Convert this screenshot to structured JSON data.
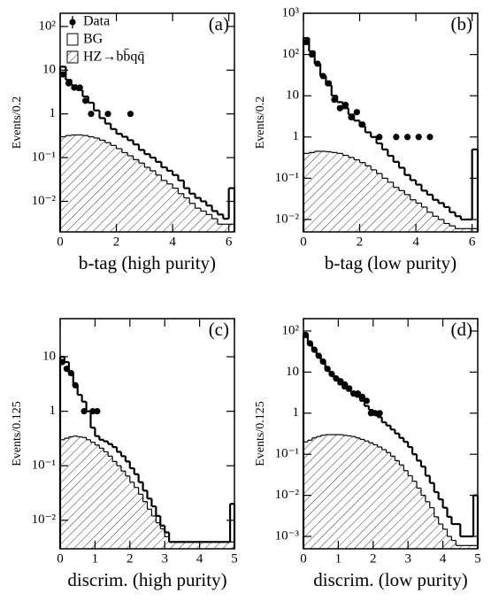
{
  "chart_data": [
    {
      "type": "histogram",
      "panel_label": "(a)",
      "xlabel": "b-tag (high purity)",
      "ylabel": "Events/0.2",
      "log_y": true,
      "legend": "upper left",
      "xlim": [
        0,
        6.2
      ],
      "xticks": [
        0,
        2,
        4,
        6
      ],
      "ylim": [
        0.002,
        200
      ],
      "yticks": [
        {
          "value": 100,
          "label": "10²"
        },
        10,
        1,
        {
          "value": 0.1,
          "label": "10⁻¹"
        },
        {
          "value": 0.01,
          "label": "10⁻²"
        }
      ],
      "bins": [
        0,
        0.2,
        0.4,
        0.6,
        0.8,
        1.0,
        1.2,
        1.4,
        1.6,
        1.8,
        2.0,
        2.2,
        2.4,
        2.6,
        2.8,
        3.0,
        3.2,
        3.4,
        3.6,
        3.8,
        4.0,
        4.2,
        4.4,
        4.6,
        4.8,
        5.0,
        5.2,
        5.4,
        5.6,
        5.8,
        6.0,
        6.2
      ],
      "series": [
        {
          "name": "BG",
          "values": [
            12,
            6,
            4.5,
            3.5,
            2.5,
            1.8,
            1.2,
            0.8,
            0.6,
            0.45,
            0.35,
            0.3,
            0.25,
            0.2,
            0.15,
            0.12,
            0.1,
            0.08,
            0.06,
            0.05,
            0.04,
            0.03,
            0.02,
            0.015,
            0.012,
            0.01,
            0.008,
            0.006,
            0.005,
            0.004,
            0.02
          ]
        },
        {
          "name": "HZ→bb̄qq̄",
          "hatch": true,
          "values": [
            0.3,
            0.32,
            0.33,
            0.33,
            0.32,
            0.3,
            0.28,
            0.25,
            0.22,
            0.19,
            0.16,
            0.13,
            0.11,
            0.09,
            0.075,
            0.06,
            0.05,
            0.04,
            0.03,
            0.025,
            0.02,
            0.015,
            0.012,
            0.009,
            0.007,
            0.006,
            0.005,
            0.004,
            0.003,
            0.003,
            0.003
          ]
        }
      ],
      "points": {
        "name": "Data",
        "x": [
          0.1,
          0.3,
          0.5,
          0.7,
          0.9,
          1.1,
          1.7,
          2.5
        ],
        "values": [
          8,
          5,
          4,
          4,
          2,
          1,
          1,
          1
        ]
      }
    },
    {
      "type": "histogram",
      "panel_label": "(b)",
      "xlabel": "b-tag (low purity)",
      "ylabel": "Events/0.2",
      "log_y": true,
      "xlim": [
        0,
        6.2
      ],
      "xticks": [
        0,
        2,
        4,
        6
      ],
      "ylim": [
        0.005,
        1000
      ],
      "yticks": [
        {
          "value": 1000,
          "label": "10³"
        },
        {
          "value": 100,
          "label": "10²"
        },
        10,
        1,
        {
          "value": 0.1,
          "label": "10⁻¹"
        },
        {
          "value": 0.01,
          "label": "10⁻²"
        }
      ],
      "bins": [
        0,
        0.2,
        0.4,
        0.6,
        0.8,
        1.0,
        1.2,
        1.4,
        1.6,
        1.8,
        2.0,
        2.2,
        2.4,
        2.6,
        2.8,
        3.0,
        3.2,
        3.4,
        3.6,
        3.8,
        4.0,
        4.2,
        4.4,
        4.6,
        4.8,
        5.0,
        5.2,
        5.4,
        5.6,
        5.8,
        6.0,
        6.2
      ],
      "series": [
        {
          "values": [
            250,
            120,
            60,
            30,
            18,
            10,
            7,
            5,
            3.5,
            2.5,
            1.8,
            1.3,
            1,
            0.7,
            0.5,
            0.35,
            0.25,
            0.18,
            0.12,
            0.09,
            0.07,
            0.05,
            0.04,
            0.03,
            0.025,
            0.02,
            0.015,
            0.012,
            0.01,
            0.01,
            0.5
          ]
        },
        {
          "hatch": true,
          "values": [
            0.4,
            0.42,
            0.45,
            0.45,
            0.44,
            0.42,
            0.4,
            0.36,
            0.32,
            0.28,
            0.24,
            0.2,
            0.16,
            0.13,
            0.1,
            0.08,
            0.06,
            0.05,
            0.04,
            0.03,
            0.025,
            0.02,
            0.015,
            0.012,
            0.01,
            0.008,
            0.007,
            0.006,
            0.006,
            0.006,
            0.006
          ]
        }
      ],
      "points": {
        "x": [
          0.1,
          0.3,
          0.5,
          0.7,
          0.9,
          1.1,
          1.3,
          1.5,
          1.7,
          1.9,
          2.1,
          2.7,
          3.3,
          3.7,
          4.1,
          4.5
        ],
        "values": [
          200,
          100,
          60,
          30,
          20,
          8,
          5,
          6,
          3,
          4,
          2,
          1,
          1,
          1,
          1,
          1
        ]
      }
    },
    {
      "type": "histogram",
      "panel_label": "(c)",
      "xlabel": "discrim. (high purity)",
      "ylabel": "Events/0.125",
      "log_y": true,
      "xlim": [
        0,
        5
      ],
      "xticks": [
        0,
        1,
        2,
        3,
        4,
        5
      ],
      "ylim": [
        0.003,
        50
      ],
      "yticks": [
        10,
        1,
        {
          "value": 0.1,
          "label": "10⁻¹"
        },
        {
          "value": 0.01,
          "label": "10⁻²"
        }
      ],
      "bins": [
        0,
        0.125,
        0.25,
        0.375,
        0.5,
        0.625,
        0.75,
        0.875,
        1.0,
        1.125,
        1.25,
        1.375,
        1.5,
        1.625,
        1.75,
        1.875,
        2.0,
        2.125,
        2.25,
        2.375,
        2.5,
        2.625,
        2.75,
        2.875,
        3.0,
        3.125,
        3.25,
        3.375,
        3.5,
        3.625,
        3.75,
        3.875,
        4.0,
        4.125,
        4.25,
        4.375,
        4.5,
        4.625,
        4.75,
        4.875,
        5.0
      ],
      "series": [
        {
          "values": [
            10,
            8,
            5,
            3,
            2,
            1.5,
            1,
            0.5,
            0.35,
            0.3,
            0.28,
            0.25,
            0.22,
            0.18,
            0.15,
            0.12,
            0.09,
            0.07,
            0.05,
            0.035,
            0.025,
            0.018,
            0.012,
            0.008,
            0.006,
            0.004,
            0.004,
            0.004,
            0.004,
            0.004,
            0.004,
            0.004,
            0.004,
            0.004,
            0.004,
            0.004,
            0.004,
            0.004,
            0.004,
            0.02
          ]
        },
        {
          "hatch": true,
          "values": [
            0.3,
            0.32,
            0.34,
            0.35,
            0.34,
            0.33,
            0.3,
            0.27,
            0.24,
            0.21,
            0.18,
            0.15,
            0.12,
            0.1,
            0.08,
            0.065,
            0.05,
            0.04,
            0.03,
            0.022,
            0.016,
            0.012,
            0.009,
            0.007,
            0.005,
            0.004,
            0.004,
            0.004,
            0.004,
            0.004,
            0.004,
            0.004,
            0.004,
            0.004,
            0.004,
            0.004,
            0.004,
            0.004,
            0.004,
            0.004
          ]
        }
      ],
      "points": {
        "x": [
          0.0625,
          0.1875,
          0.3125,
          0.4375,
          0.6875,
          0.9375,
          1.0625
        ],
        "values": [
          8,
          6,
          5,
          3,
          1,
          1,
          1
        ]
      }
    },
    {
      "type": "histogram",
      "panel_label": "(d)",
      "xlabel": "discrim. (low purity)",
      "ylabel": "Events/0.125",
      "log_y": true,
      "xlim": [
        0,
        5
      ],
      "xticks": [
        0,
        1,
        2,
        3,
        4,
        5
      ],
      "ylim": [
        0.0005,
        200
      ],
      "yticks": [
        {
          "value": 100,
          "label": "10²"
        },
        10,
        1,
        {
          "value": 0.1,
          "label": "10⁻¹"
        },
        {
          "value": 0.01,
          "label": "10⁻²"
        },
        {
          "value": 0.001,
          "label": "10⁻³"
        }
      ],
      "bins": [
        0,
        0.125,
        0.25,
        0.375,
        0.5,
        0.625,
        0.75,
        0.875,
        1.0,
        1.125,
        1.25,
        1.375,
        1.5,
        1.625,
        1.75,
        1.875,
        2.0,
        2.125,
        2.25,
        2.375,
        2.5,
        2.625,
        2.75,
        2.875,
        3.0,
        3.125,
        3.25,
        3.375,
        3.5,
        3.625,
        3.75,
        3.875,
        4.0,
        4.125,
        4.25,
        4.375,
        4.5,
        4.625,
        4.75,
        4.875,
        5.0
      ],
      "series": [
        {
          "values": [
            80,
            50,
            35,
            25,
            18,
            12,
            9,
            7,
            5,
            4,
            3.5,
            3,
            2.5,
            2,
            1.5,
            1.2,
            1,
            0.8,
            0.6,
            0.5,
            0.4,
            0.32,
            0.25,
            0.2,
            0.15,
            0.1,
            0.07,
            0.05,
            0.03,
            0.02,
            0.012,
            0.008,
            0.005,
            0.003,
            0.002,
            0.002,
            0.001,
            0.001,
            0.001,
            0.01
          ]
        },
        {
          "hatch": true,
          "values": [
            0.2,
            0.22,
            0.25,
            0.27,
            0.29,
            0.3,
            0.3,
            0.3,
            0.3,
            0.29,
            0.28,
            0.27,
            0.25,
            0.23,
            0.21,
            0.19,
            0.17,
            0.15,
            0.13,
            0.11,
            0.09,
            0.07,
            0.055,
            0.04,
            0.03,
            0.022,
            0.015,
            0.01,
            0.007,
            0.005,
            0.003,
            0.002,
            0.0015,
            0.001,
            0.0008,
            0.0006,
            0.0006,
            0.0006,
            0.0006,
            0.0006
          ]
        }
      ],
      "points": {
        "x": [
          0.0625,
          0.1875,
          0.3125,
          0.4375,
          0.5625,
          0.6875,
          0.8125,
          0.9375,
          1.0625,
          1.1875,
          1.3125,
          1.4375,
          1.5625,
          1.6875,
          1.8125,
          1.9375,
          2.0625,
          2.1875
        ],
        "values": [
          80,
          50,
          35,
          25,
          18,
          12,
          9,
          7,
          6,
          5,
          4,
          3,
          3,
          2.5,
          2,
          1,
          1,
          1
        ]
      }
    }
  ]
}
